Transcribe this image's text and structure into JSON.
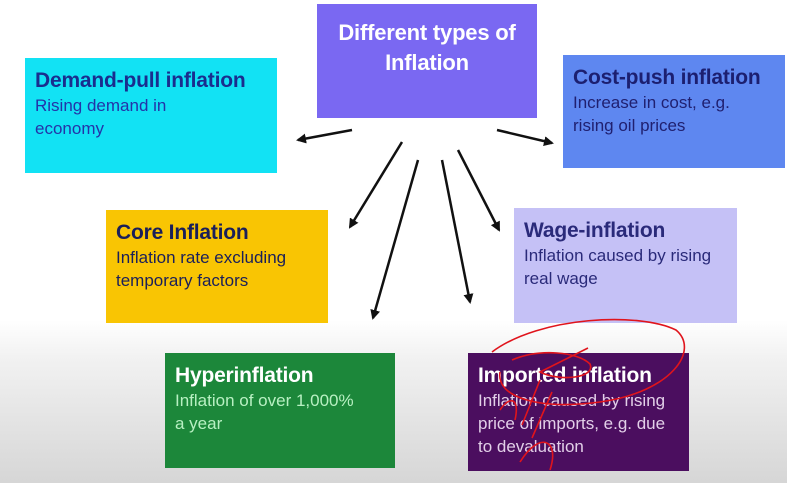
{
  "center": {
    "title_line1": "Different types of",
    "title_line2": "Inflation"
  },
  "boxes": {
    "demand_pull": {
      "title": "Demand-pull inflation",
      "desc_line1": "Rising demand in",
      "desc_line2": "economy"
    },
    "cost_push": {
      "title": "Cost-push inflation",
      "desc_line1": "Increase in cost, e.g.",
      "desc_line2": "rising oil prices"
    },
    "core": {
      "title": "Core Inflation",
      "desc_line1": "Inflation rate excluding",
      "desc_line2": "temporary factors"
    },
    "wage": {
      "title": "Wage-inflation",
      "desc_line1": "Inflation caused by rising",
      "desc_line2": "real wage"
    },
    "hyper": {
      "title": "Hyperinflation",
      "desc_line1": "Inflation of over 1,000%",
      "desc_line2": "a year"
    },
    "imported": {
      "title": "Imported inflation",
      "desc_line1": "Inflation caused by rising",
      "desc_line2": "price of imports, e.g. due",
      "desc_line3": "to devaluation"
    }
  },
  "colors": {
    "center": "#7a68f2",
    "demand_pull": "#12e2f4",
    "cost_push": "#5e87f0",
    "core": "#f9c503",
    "wage": "#c5c1f6",
    "hyper": "#1c873a",
    "imported": "#4b0e5f",
    "annotation": "#e0141c",
    "arrow": "#111111"
  }
}
